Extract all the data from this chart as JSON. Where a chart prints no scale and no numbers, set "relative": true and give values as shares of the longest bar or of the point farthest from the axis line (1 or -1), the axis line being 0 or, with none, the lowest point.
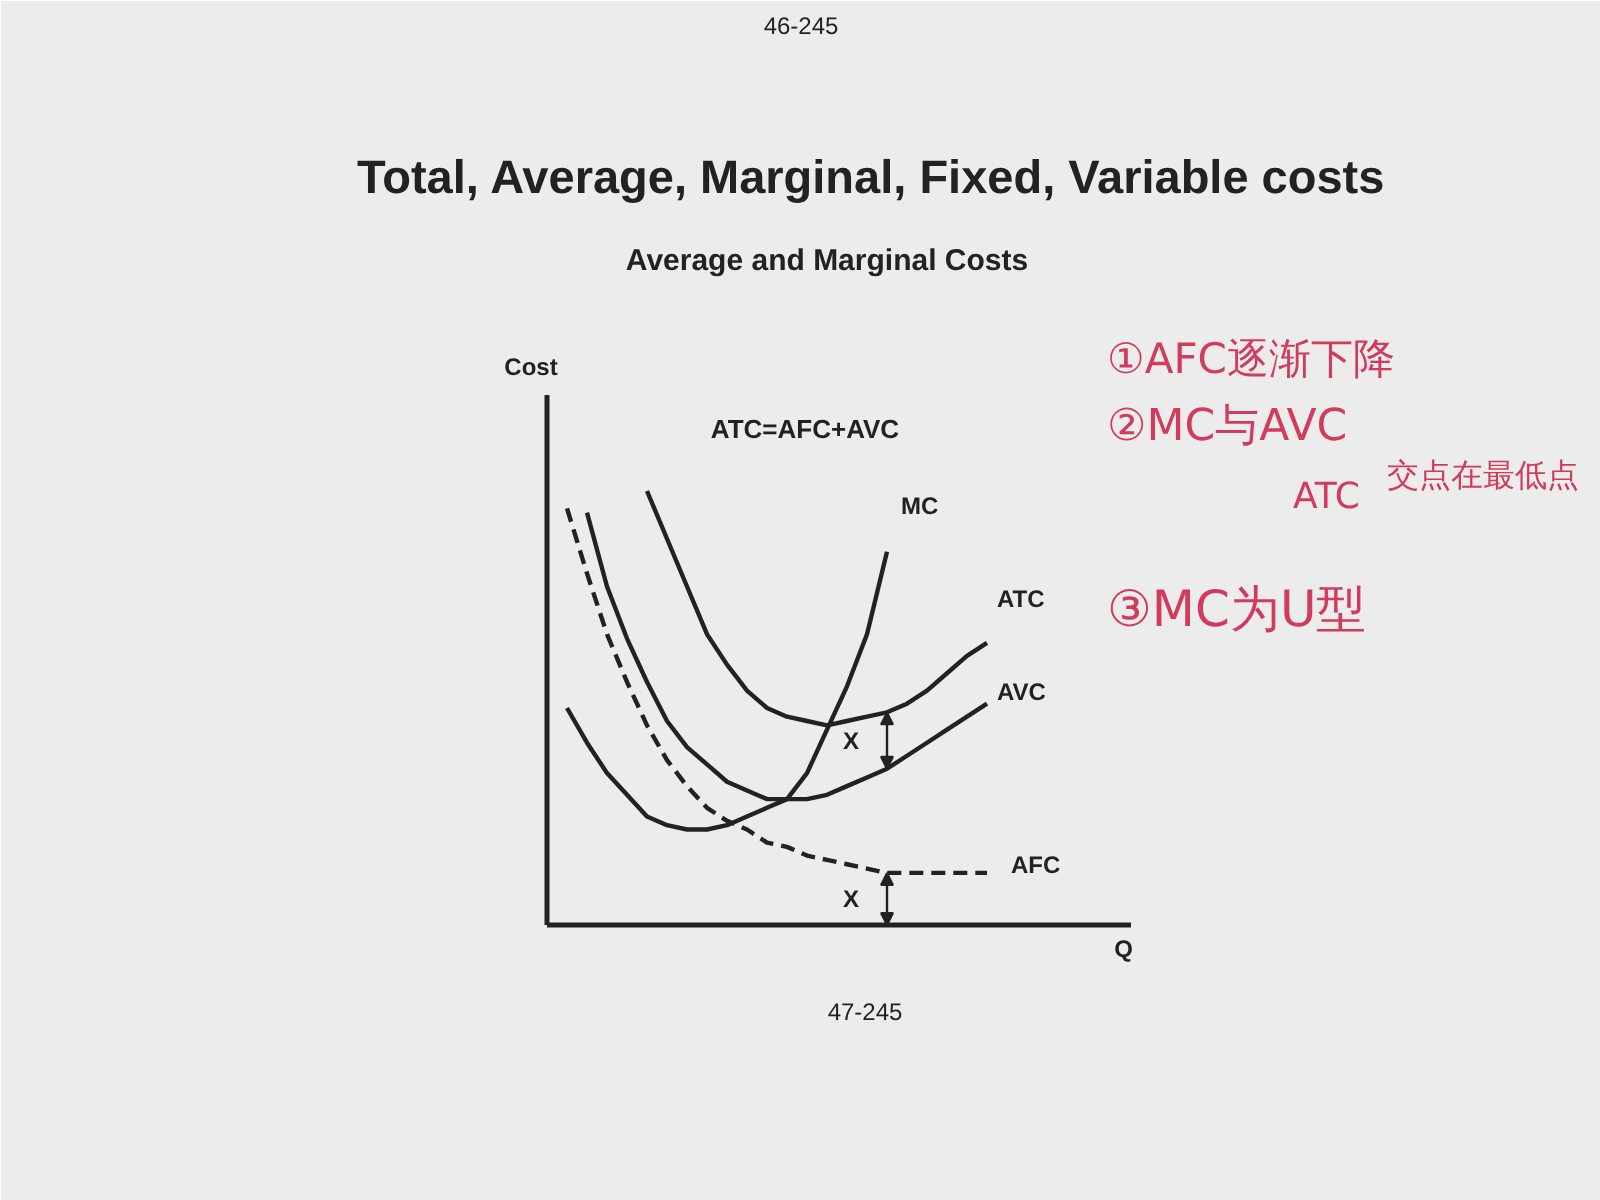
{
  "chart_data": {
    "type": "line",
    "title": "Total, Average, Marginal, Fixed, Variable costs",
    "subtitle": "Average and Marginal Costs",
    "xlabel": "Q",
    "ylabel": "Cost",
    "relative": true,
    "categories": [
      null,
      null,
      null,
      null,
      null,
      null,
      null,
      null,
      null,
      null,
      null,
      null,
      null,
      null,
      null,
      null,
      null,
      null,
      null,
      null,
      null,
      null
    ],
    "series": [
      {
        "name": "MC",
        "color": "#222222",
        "values": [
          0.5,
          0.42,
          0.35,
          0.3,
          0.25,
          0.23,
          0.22,
          0.22,
          0.23,
          0.25,
          0.27,
          0.29,
          0.35,
          0.45,
          0.55,
          0.67,
          0.86,
          null,
          null,
          null,
          null,
          null
        ]
      },
      {
        "name": "ATC",
        "color": "#222222",
        "values": [
          null,
          null,
          null,
          null,
          1.0,
          0.89,
          0.78,
          0.67,
          0.6,
          0.54,
          0.5,
          0.48,
          0.47,
          0.46,
          0.47,
          0.48,
          0.49,
          0.51,
          0.54,
          0.58,
          0.62,
          0.65
        ]
      },
      {
        "name": "AVC",
        "color": "#222222",
        "values": [
          null,
          0.95,
          0.78,
          0.66,
          0.56,
          0.47,
          0.41,
          0.37,
          0.33,
          0.31,
          0.29,
          0.29,
          0.29,
          0.3,
          0.32,
          0.34,
          0.36,
          0.39,
          0.42,
          0.45,
          0.48,
          0.51
        ]
      },
      {
        "name": "AFC",
        "color": "#222222",
        "line_style": "dashed",
        "values": [
          0.96,
          0.81,
          0.67,
          0.56,
          0.46,
          0.38,
          0.32,
          0.27,
          0.24,
          0.22,
          0.19,
          0.18,
          0.16,
          0.15,
          0.14,
          0.13,
          0.12,
          0.12,
          0.12,
          0.12,
          0.12,
          0.12
        ]
      }
    ],
    "annotations": [
      "ATC=AFC+AVC",
      "X",
      "X",
      "①AFC逐渐下降",
      "②MC与AVC",
      "ATC",
      "交点在最低点",
      "③MC为U型",
      "46-245",
      "47-245"
    ],
    "line_style": "solid",
    "marker": "none",
    "legend": false
  }
}
